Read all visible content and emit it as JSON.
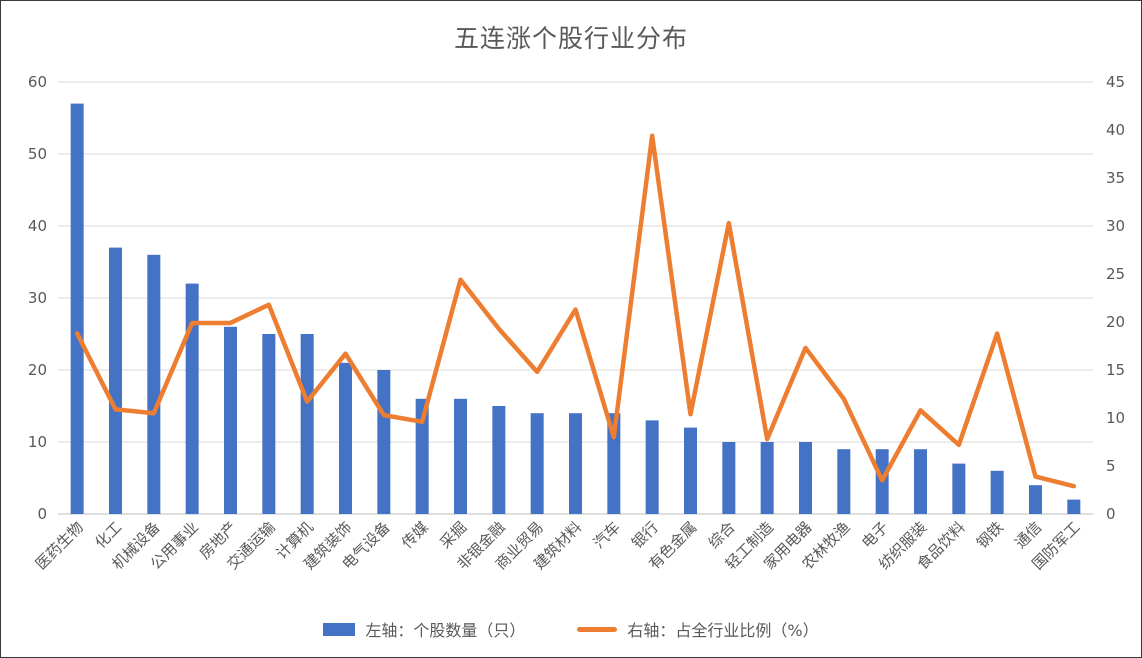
{
  "title": "五连涨个股行业分布",
  "legend": {
    "bars_label": "左轴：个股数量（只）",
    "line_label": "右轴：占全行业比例（%）"
  },
  "colors": {
    "bar": "#4472C4",
    "line": "#ED7D31",
    "text": "#595959",
    "gridline": "#D9D9D9",
    "axis_line": "#BFBFBF",
    "background": "#FFFFFF"
  },
  "chart_data": {
    "type": "bar+line-combo",
    "title": "五连涨个股行业分布",
    "categories": [
      "医药生物",
      "化工",
      "机械设备",
      "公用事业",
      "房地产",
      "交通运输",
      "计算机",
      "建筑装饰",
      "电气设备",
      "传媒",
      "采掘",
      "非银金融",
      "商业贸易",
      "建筑材料",
      "汽车",
      "银行",
      "有色金属",
      "综合",
      "轻工制造",
      "家用电器",
      "农林牧渔",
      "电子",
      "纺织服装",
      "食品饮料",
      "钢铁",
      "通信",
      "国防军工"
    ],
    "series": [
      {
        "name": "左轴：个股数量（只）",
        "type": "bar",
        "axis": "left",
        "values": [
          57,
          37,
          36,
          32,
          26,
          25,
          25,
          21,
          20,
          16,
          16,
          15,
          14,
          14,
          14,
          13,
          12,
          10,
          10,
          10,
          9,
          9,
          9,
          7,
          6,
          4,
          2
        ]
      },
      {
        "name": "右轴：占全行业比例（%）",
        "type": "line",
        "axis": "right",
        "values": [
          18.8,
          10.9,
          10.5,
          19.9,
          19.9,
          21.8,
          11.7,
          16.7,
          10.3,
          9.6,
          24.4,
          19.3,
          14.8,
          21.3,
          8.0,
          39.4,
          10.4,
          30.3,
          7.8,
          17.3,
          12.0,
          3.5,
          10.8,
          7.2,
          18.8,
          3.9,
          2.9
        ]
      }
    ],
    "left_axis": {
      "min": 0,
      "max": 60,
      "step": 10,
      "tick_labels": [
        "0",
        "10",
        "20",
        "30",
        "40",
        "50",
        "60"
      ]
    },
    "right_axis": {
      "min": 0,
      "max": 45,
      "step": 5,
      "tick_labels": [
        "0",
        "5",
        "10",
        "15",
        "20",
        "25",
        "30",
        "35",
        "40",
        "45"
      ]
    },
    "grid": true,
    "legend_position": "bottom"
  }
}
